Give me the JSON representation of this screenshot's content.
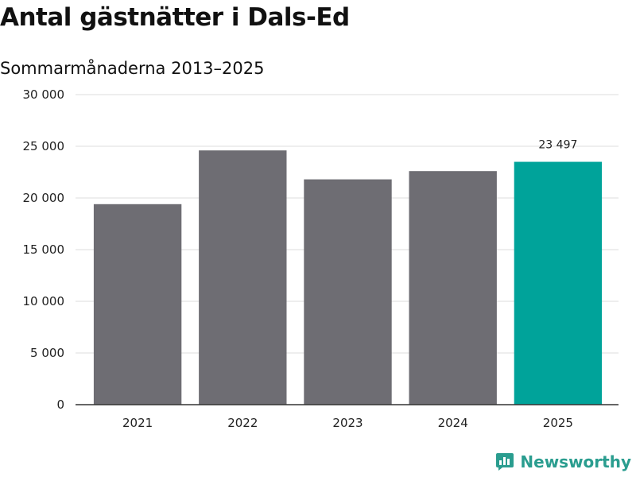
{
  "title": "Antal gästnätter i Dals-Ed",
  "subtitle": "Sommarmånaderna 2013–2025",
  "brand": {
    "name": "Newsworthy",
    "color": "#2a9d8f",
    "icon": "newsworthy-logo-icon"
  },
  "chart_data": {
    "type": "bar",
    "categories": [
      "2021",
      "2022",
      "2023",
      "2024",
      "2025"
    ],
    "values": [
      19400,
      24600,
      21800,
      22600,
      23497
    ],
    "ylim": [
      0,
      30000
    ],
    "yticks": [
      0,
      5000,
      10000,
      15000,
      20000,
      25000,
      30000
    ],
    "ytick_labels": [
      "0",
      "5 000",
      "10 000",
      "15 000",
      "20 000",
      "25 000",
      "30 000"
    ],
    "grid": true,
    "colors": {
      "default": "#6e6d73",
      "highlight": "#00a39a"
    },
    "highlight_index": 4,
    "data_labels": [
      {
        "index": 4,
        "text": "23 497"
      }
    ]
  }
}
